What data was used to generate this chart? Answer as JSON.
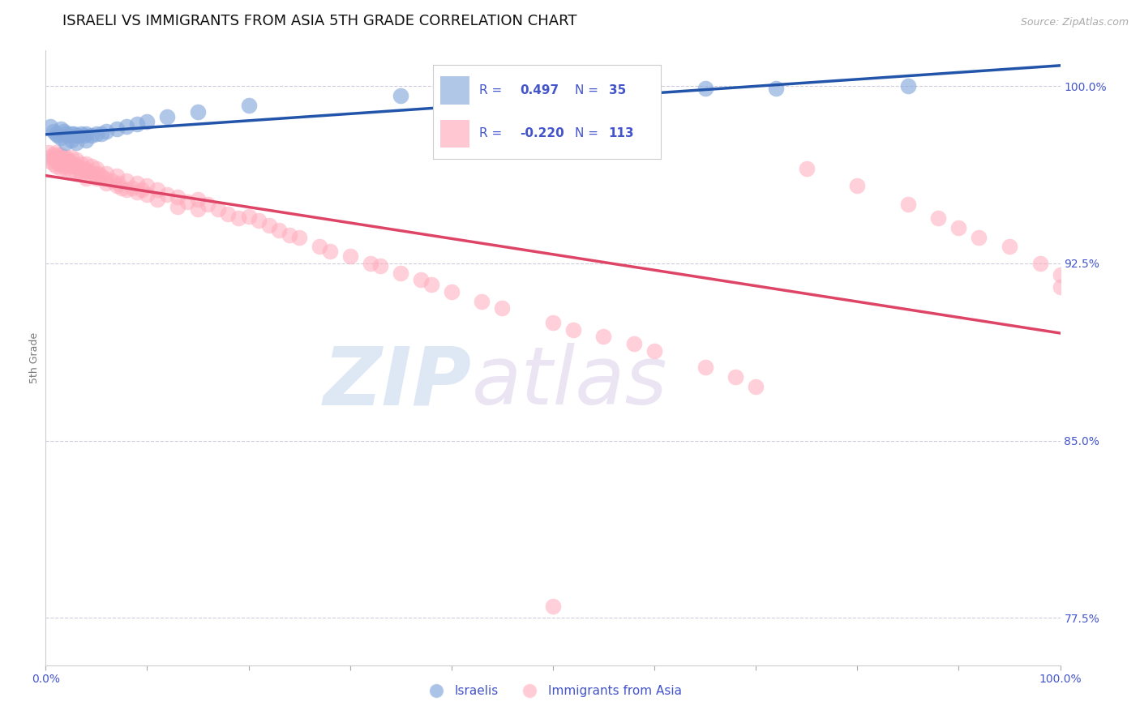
{
  "title": "ISRAELI VS IMMIGRANTS FROM ASIA 5TH GRADE CORRELATION CHART",
  "source_text": "Source: ZipAtlas.com",
  "ylabel": "5th Grade",
  "ytick_labels": [
    "100.0%",
    "92.5%",
    "85.0%",
    "77.5%"
  ],
  "ytick_values": [
    1.0,
    0.925,
    0.85,
    0.775
  ],
  "legend_label_1": "Israelis",
  "legend_label_2": "Immigrants from Asia",
  "r1": 0.497,
  "n1": 35,
  "r2": -0.22,
  "n2": 113,
  "blue_color": "#88aadd",
  "pink_color": "#ffaabb",
  "blue_line_color": "#2255aa",
  "pink_line_color": "#dd4466",
  "background_color": "#ffffff",
  "title_fontsize": 13,
  "axis_label_fontsize": 9,
  "tick_fontsize": 10,
  "blue_x": [
    0.005,
    0.008,
    0.01,
    0.012,
    0.015,
    0.015,
    0.018,
    0.02,
    0.02,
    0.022,
    0.025,
    0.025,
    0.028,
    0.03,
    0.03,
    0.032,
    0.035,
    0.038,
    0.04,
    0.04,
    0.045,
    0.05,
    0.055,
    0.06,
    0.07,
    0.08,
    0.09,
    0.1,
    0.12,
    0.15,
    0.2,
    0.35,
    0.65,
    0.72,
    0.85
  ],
  "blue_y": [
    0.983,
    0.981,
    0.98,
    0.979,
    0.982,
    0.978,
    0.981,
    0.98,
    0.976,
    0.979,
    0.98,
    0.977,
    0.98,
    0.979,
    0.976,
    0.979,
    0.98,
    0.979,
    0.98,
    0.977,
    0.979,
    0.98,
    0.98,
    0.981,
    0.982,
    0.983,
    0.984,
    0.985,
    0.987,
    0.989,
    0.992,
    0.996,
    0.999,
    0.999,
    1.0
  ],
  "pink_x": [
    0.003,
    0.005,
    0.005,
    0.007,
    0.008,
    0.008,
    0.01,
    0.01,
    0.01,
    0.012,
    0.012,
    0.013,
    0.013,
    0.015,
    0.015,
    0.015,
    0.017,
    0.018,
    0.018,
    0.02,
    0.02,
    0.02,
    0.022,
    0.022,
    0.023,
    0.025,
    0.025,
    0.025,
    0.027,
    0.028,
    0.03,
    0.03,
    0.03,
    0.032,
    0.033,
    0.035,
    0.035,
    0.038,
    0.04,
    0.04,
    0.04,
    0.042,
    0.045,
    0.045,
    0.048,
    0.05,
    0.05,
    0.052,
    0.055,
    0.058,
    0.06,
    0.06,
    0.065,
    0.07,
    0.07,
    0.072,
    0.075,
    0.08,
    0.08,
    0.085,
    0.09,
    0.09,
    0.095,
    0.1,
    0.1,
    0.11,
    0.11,
    0.12,
    0.13,
    0.13,
    0.14,
    0.15,
    0.15,
    0.16,
    0.17,
    0.18,
    0.19,
    0.2,
    0.21,
    0.22,
    0.23,
    0.24,
    0.25,
    0.27,
    0.28,
    0.3,
    0.32,
    0.33,
    0.35,
    0.37,
    0.38,
    0.4,
    0.43,
    0.45,
    0.5,
    0.52,
    0.55,
    0.58,
    0.6,
    0.65,
    0.68,
    0.7,
    0.75,
    0.8,
    0.85,
    0.88,
    0.9,
    0.92,
    0.95,
    0.98,
    1.0,
    1.0,
    0.5
  ],
  "pink_y": [
    0.972,
    0.97,
    0.968,
    0.971,
    0.97,
    0.967,
    0.972,
    0.969,
    0.966,
    0.971,
    0.968,
    0.97,
    0.967,
    0.971,
    0.968,
    0.965,
    0.97,
    0.969,
    0.966,
    0.97,
    0.968,
    0.965,
    0.969,
    0.966,
    0.968,
    0.97,
    0.967,
    0.964,
    0.967,
    0.966,
    0.969,
    0.966,
    0.963,
    0.966,
    0.964,
    0.967,
    0.963,
    0.965,
    0.967,
    0.964,
    0.961,
    0.964,
    0.966,
    0.962,
    0.963,
    0.965,
    0.961,
    0.963,
    0.962,
    0.961,
    0.963,
    0.959,
    0.96,
    0.962,
    0.958,
    0.959,
    0.957,
    0.96,
    0.956,
    0.957,
    0.959,
    0.955,
    0.956,
    0.958,
    0.954,
    0.956,
    0.952,
    0.954,
    0.953,
    0.949,
    0.951,
    0.952,
    0.948,
    0.95,
    0.948,
    0.946,
    0.944,
    0.945,
    0.943,
    0.941,
    0.939,
    0.937,
    0.936,
    0.932,
    0.93,
    0.928,
    0.925,
    0.924,
    0.921,
    0.918,
    0.916,
    0.913,
    0.909,
    0.906,
    0.9,
    0.897,
    0.894,
    0.891,
    0.888,
    0.881,
    0.877,
    0.873,
    0.965,
    0.958,
    0.95,
    0.944,
    0.94,
    0.936,
    0.932,
    0.925,
    0.92,
    0.915,
    0.78
  ],
  "ylim_min": 0.755,
  "ylim_max": 1.015
}
